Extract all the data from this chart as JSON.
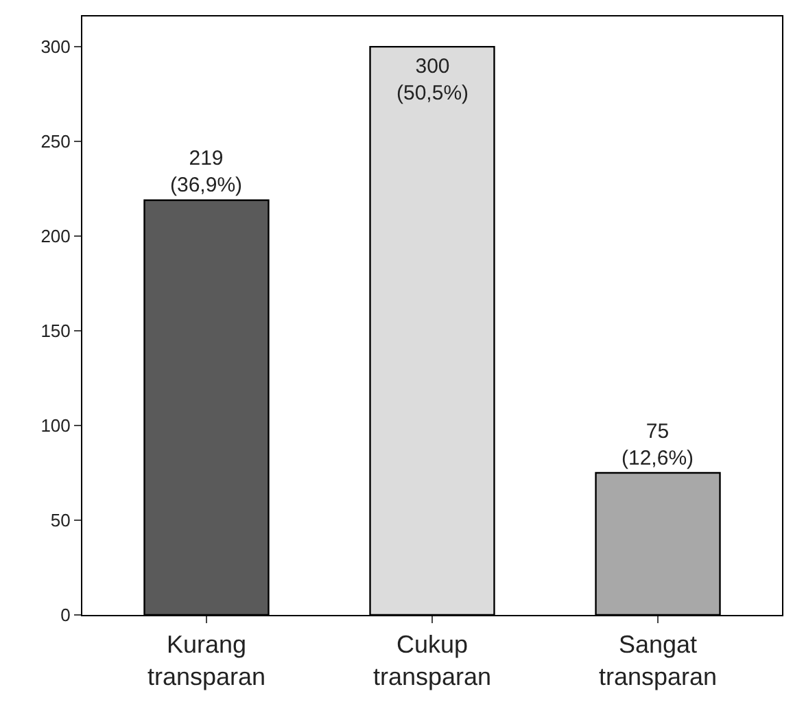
{
  "chart_data": {
    "type": "bar",
    "categories": [
      "Kurang\ntransparan",
      "Cukup\ntransparan",
      "Sangat\ntransparan"
    ],
    "values": [
      219,
      300,
      75
    ],
    "colors": [
      "#5a5a5a",
      "#dcdcdc",
      "#a8a8a8"
    ],
    "value_labels": [
      "219\n(36,9%)",
      "300\n(50,5%)",
      "75\n(12,6%)"
    ],
    "ylim": [
      0,
      316
    ],
    "yticks": [
      0,
      50,
      100,
      150,
      200,
      250,
      300
    ],
    "legend": false
  }
}
